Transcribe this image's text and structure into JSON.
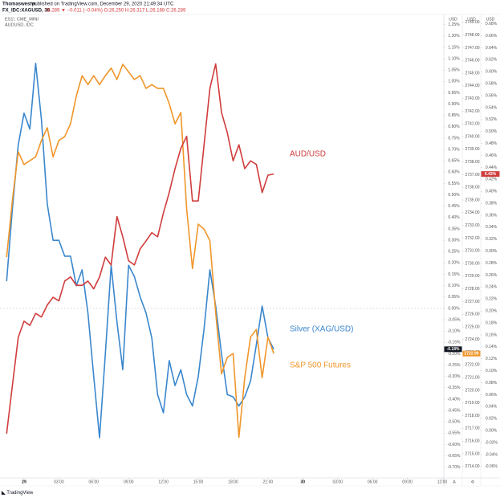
{
  "header": {
    "author": "Thomaswestw",
    "published": "published on TradingView.com, December 29, 2020 21:49:34 UTC",
    "symbol": "FX_IDC:XAGUSD, 30",
    "quote": "26.289 ▼ −0.011 (−0.04%) O:26.250 H:26.317 L:26.168 C:26.289"
  },
  "chart_data": {
    "type": "line",
    "overlay_symbols": [
      "ES1!, CME_MINI",
      "AUDUSD, IDC"
    ],
    "x": [
      -1.5,
      -1,
      -0.5,
      0,
      0.5,
      1,
      1.5,
      2,
      2.5,
      3,
      3.5,
      4,
      4.5,
      5,
      5.5,
      6,
      6.5,
      7,
      7.5,
      8,
      8.5,
      9,
      9.5,
      10,
      10.5,
      11,
      11.5,
      12,
      12.5,
      13,
      13.5,
      14,
      14.5,
      15,
      15.5,
      16,
      16.5,
      17,
      17.5,
      18,
      18.5,
      19,
      19.5,
      20,
      20.5,
      21,
      21.5
    ],
    "xlim": [
      -2.07,
      36.14
    ],
    "xticks": [
      {
        "value": 0,
        "label": "29"
      },
      {
        "value": 3,
        "label": "03:00"
      },
      {
        "value": 6,
        "label": "06:00"
      },
      {
        "value": 9,
        "label": "09:00"
      },
      {
        "value": 12,
        "label": "12:00"
      },
      {
        "value": 15,
        "label": "15:00"
      },
      {
        "value": 18,
        "label": "18:00"
      },
      {
        "value": 21,
        "label": "21:00"
      },
      {
        "value": 24,
        "label": "30"
      },
      {
        "value": 27,
        "label": "03:00"
      },
      {
        "value": 30,
        "label": "06:00"
      },
      {
        "value": 33,
        "label": "09:00"
      },
      {
        "value": 36,
        "label": "12:00"
      }
    ],
    "axis_titles": [
      "USD",
      "USD",
      "USD"
    ],
    "baseline": 0,
    "ylim": [
      -0.747,
      1.288
    ],
    "yticks": [
      {
        "value": 1.25,
        "label": "1.25%"
      },
      {
        "value": 1.2,
        "label": "1.20%"
      },
      {
        "value": 1.15,
        "label": "1.15%"
      },
      {
        "value": 1.1,
        "label": "1.10%"
      },
      {
        "value": 1.05,
        "label": "1.05%"
      },
      {
        "value": 1,
        "label": "1.00%"
      },
      {
        "value": 0.95,
        "label": "0.95%"
      },
      {
        "value": 0.9,
        "label": "0.90%"
      },
      {
        "value": 0.85,
        "label": "0.85%"
      },
      {
        "value": 0.8,
        "label": "0.80%"
      },
      {
        "value": 0.75,
        "label": "0.75%"
      },
      {
        "value": 0.7,
        "label": "0.70%"
      },
      {
        "value": 0.65,
        "label": "0.65%"
      },
      {
        "value": 0.6,
        "label": "0.60%"
      },
      {
        "value": 0.55,
        "label": "0.55%"
      },
      {
        "value": 0.5,
        "label": "0.50%"
      },
      {
        "value": 0.45,
        "label": "0.45%"
      },
      {
        "value": 0.4,
        "label": "0.40%"
      },
      {
        "value": 0.35,
        "label": "0.35%"
      },
      {
        "value": 0.3,
        "label": "0.30%"
      },
      {
        "value": 0.25,
        "label": "0.25%"
      },
      {
        "value": 0.2,
        "label": "0.20%"
      },
      {
        "value": 0.15,
        "label": "0.15%"
      },
      {
        "value": 0.1,
        "label": "0.10%"
      },
      {
        "value": 0.05,
        "label": "0.05%"
      },
      {
        "value": 0,
        "label": "0.00%"
      },
      {
        "value": -0.05,
        "label": "-0.05%"
      },
      {
        "value": -0.1,
        "label": "-0.10%"
      },
      {
        "value": -0.15,
        "label": "-0.15%"
      },
      {
        "value": -0.2,
        "label": "-0.20%"
      },
      {
        "value": -0.25,
        "label": "-0.25%"
      },
      {
        "value": -0.3,
        "label": "-0.30%"
      },
      {
        "value": -0.35,
        "label": "-0.35%"
      },
      {
        "value": -0.4,
        "label": "-0.40%"
      },
      {
        "value": -0.45,
        "label": "-0.45%"
      },
      {
        "value": -0.5,
        "label": "-0.50%"
      },
      {
        "value": -0.55,
        "label": "-0.55%"
      },
      {
        "value": -0.6,
        "label": "-0.60%"
      },
      {
        "value": -0.65,
        "label": "-0.65%"
      },
      {
        "value": -0.7,
        "label": "-0.70%"
      }
    ],
    "y2lim": [
      2713.1,
      2749.5
    ],
    "y2ticks": [
      {
        "value": 2749,
        "label": "2749.00"
      },
      {
        "value": 2748,
        "label": "2748.00"
      },
      {
        "value": 2747,
        "label": "2747.00"
      },
      {
        "value": 2746,
        "label": "2746.00"
      },
      {
        "value": 2745,
        "label": "2745.00"
      },
      {
        "value": 2744,
        "label": "2744.00"
      },
      {
        "value": 2743,
        "label": "2743.00"
      },
      {
        "value": 2742,
        "label": "2742.00"
      },
      {
        "value": 2741,
        "label": "2741.00"
      },
      {
        "value": 2740,
        "label": "2740.00"
      },
      {
        "value": 2739,
        "label": "2739.00"
      },
      {
        "value": 2738,
        "label": "2738.00"
      },
      {
        "value": 2737,
        "label": "2737.00"
      },
      {
        "value": 2736,
        "label": "2736.00"
      },
      {
        "value": 2735,
        "label": "2735.00"
      },
      {
        "value": 2734,
        "label": "2734.00"
      },
      {
        "value": 2733,
        "label": "2733.00"
      },
      {
        "value": 2732,
        "label": "2732.00"
      },
      {
        "value": 2731,
        "label": "2731.00"
      },
      {
        "value": 2730,
        "label": "2730.00"
      },
      {
        "value": 2729,
        "label": "2729.00"
      },
      {
        "value": 2728,
        "label": "2728.00"
      },
      {
        "value": 2727,
        "label": "2727.00"
      },
      {
        "value": 2726,
        "label": "2726.00"
      },
      {
        "value": 2725,
        "label": "2725.00"
      },
      {
        "value": 2724,
        "label": "2724.00"
      },
      {
        "value": 2723,
        "label": "2723.00"
      },
      {
        "value": 2722,
        "label": "2722.00"
      },
      {
        "value": 2721,
        "label": "2721.00"
      },
      {
        "value": 2720,
        "label": "2720.00"
      },
      {
        "value": 2719,
        "label": "2719.00"
      },
      {
        "value": 2718,
        "label": "2718.00"
      },
      {
        "value": 2717,
        "label": "2717.00"
      },
      {
        "value": 2716,
        "label": "2716.00"
      },
      {
        "value": 2715,
        "label": "2715.00"
      },
      {
        "value": 2714,
        "label": "2714.00"
      }
    ],
    "y3lim": [
      -0.079,
      0.693
    ],
    "y3ticks": [
      {
        "value": 0.68,
        "label": "0.68%"
      },
      {
        "value": 0.66,
        "label": "0.66%"
      },
      {
        "value": 0.64,
        "label": "0.64%"
      },
      {
        "value": 0.62,
        "label": "0.62%"
      },
      {
        "value": 0.6,
        "label": "0.60%"
      },
      {
        "value": 0.58,
        "label": "0.58%"
      },
      {
        "value": 0.56,
        "label": "0.56%"
      },
      {
        "value": 0.54,
        "label": "0.54%"
      },
      {
        "value": 0.52,
        "label": "0.52%"
      },
      {
        "value": 0.5,
        "label": "0.50%"
      },
      {
        "value": 0.48,
        "label": "0.48%"
      },
      {
        "value": 0.46,
        "label": "0.46%"
      },
      {
        "value": 0.44,
        "label": "0.44%"
      },
      {
        "value": 0.42,
        "label": "0.42%"
      },
      {
        "value": 0.4,
        "label": "0.40%"
      },
      {
        "value": 0.38,
        "label": "0.38%"
      },
      {
        "value": 0.36,
        "label": "0.36%"
      },
      {
        "value": 0.34,
        "label": "0.34%"
      },
      {
        "value": 0.32,
        "label": "0.32%"
      },
      {
        "value": 0.3,
        "label": "0.30%"
      },
      {
        "value": 0.28,
        "label": "0.28%"
      },
      {
        "value": 0.26,
        "label": "0.26%"
      },
      {
        "value": 0.24,
        "label": "0.24%"
      },
      {
        "value": 0.22,
        "label": "0.22%"
      },
      {
        "value": 0.2,
        "label": "0.20%"
      },
      {
        "value": 0.18,
        "label": "0.18%"
      },
      {
        "value": 0.16,
        "label": "0.16%"
      },
      {
        "value": 0.14,
        "label": "0.14%"
      },
      {
        "value": 0.12,
        "label": "0.12%"
      },
      {
        "value": 0.1,
        "label": "0.10%"
      },
      {
        "value": 0.08,
        "label": "0.08%"
      },
      {
        "value": 0.06,
        "label": "0.06%"
      },
      {
        "value": 0.04,
        "label": "0.04%"
      },
      {
        "value": 0.02,
        "label": "0.02%"
      },
      {
        "value": 0,
        "label": "0.00%"
      },
      {
        "value": -0.02,
        "label": "-0.02%"
      },
      {
        "value": -0.04,
        "label": "-0.04%"
      },
      {
        "value": -0.06,
        "label": "-0.06%"
      }
    ],
    "series": [
      {
        "name": "Silver (XAG/USD)",
        "color": "#3a87cd",
        "axis": "y",
        "tag_color": "#131722",
        "last_label": "-0.18%",
        "values": [
          0.12,
          0.44,
          0.72,
          0.86,
          0.79,
          1.08,
          0.83,
          0.46,
          0.3,
          0.3,
          0.23,
          0.23,
          0.1,
          0.17,
          -0.02,
          -0.3,
          -0.57,
          -0.2,
          0.19,
          -0.06,
          -0.27,
          0.19,
          0.14,
          0.05,
          -0.02,
          -0.13,
          -0.38,
          -0.46,
          -0.23,
          -0.34,
          -0.27,
          -0.38,
          -0.43,
          -0.3,
          -0.09,
          0.17,
          0.01,
          -0.2,
          -0.38,
          -0.39,
          -0.43,
          -0.39,
          -0.32,
          -0.16,
          0.01,
          -0.13,
          -0.18
        ]
      },
      {
        "name": "S&P 500 Futures",
        "color": "#f0962a",
        "axis": "y2",
        "tag_color": "#f0962a",
        "last_label": "2722.90",
        "values": [
          2730.5,
          2735.0,
          2738.8,
          2737.8,
          2738.1,
          2738.4,
          2739.7,
          2740.7,
          2738.4,
          2739.7,
          2740.0,
          2741.0,
          2743.2,
          2744.8,
          2744.1,
          2744.8,
          2744.1,
          2744.8,
          2745.4,
          2744.5,
          2745.7,
          2745.1,
          2744.5,
          2744.8,
          2743.8,
          2744.1,
          2743.8,
          2743.8,
          2742.6,
          2741.0,
          2741.9,
          2734.3,
          2729.6,
          2733.1,
          2732.7,
          2731.8,
          2726.1,
          2721.3,
          2722.6,
          2722.9,
          2716.3,
          2721.0,
          2724.2,
          2724.8,
          2721.0,
          2724.2,
          2722.9
        ]
      },
      {
        "name": "AUD/USD",
        "color": "#d03c3c",
        "axis": "y3",
        "tag_color": "#d03c3c",
        "last_label": "0.43%",
        "values": [
          -0.005,
          0.076,
          0.156,
          0.183,
          0.176,
          0.196,
          0.19,
          0.21,
          0.223,
          0.217,
          0.25,
          0.257,
          0.243,
          0.243,
          0.25,
          0.237,
          0.257,
          0.29,
          0.277,
          0.358,
          0.324,
          0.284,
          0.277,
          0.304,
          0.317,
          0.331,
          0.324,
          0.364,
          0.398,
          0.438,
          0.472,
          0.492,
          0.384,
          0.384,
          0.478,
          0.572,
          0.613,
          0.532,
          0.498,
          0.451,
          0.478,
          0.438,
          0.451,
          0.445,
          0.398,
          0.427,
          0.429
        ]
      }
    ],
    "scale_buttons": [
      "A",
      "⚙"
    ],
    "brand": "TradingView"
  }
}
